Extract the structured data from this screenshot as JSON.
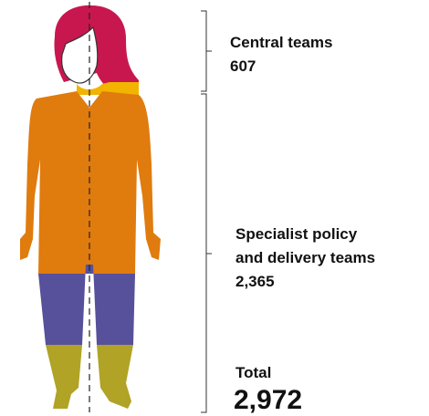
{
  "groups": [
    {
      "label_lines": [
        "Central teams"
      ],
      "value": "607"
    },
    {
      "label_lines": [
        "Specialist policy",
        "and delivery teams"
      ],
      "value": "2,365"
    }
  ],
  "total": {
    "label": "Total",
    "value": "2,972"
  }
}
